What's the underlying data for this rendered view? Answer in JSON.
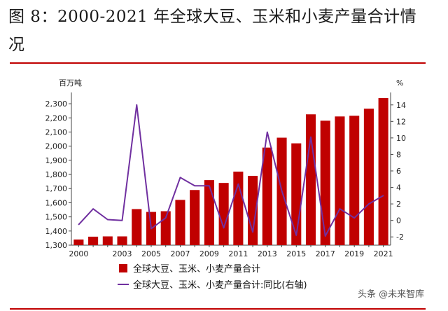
{
  "title": "图 8：2000-2021 年全球大豆、玉米和小麦产量合计情况",
  "watermark": "头条 @未来智库",
  "chart_data": {
    "type": "bar",
    "left_unit": "百万吨",
    "right_unit": "%",
    "categories": [
      "2000",
      "2001",
      "2002",
      "2003",
      "2004",
      "2005",
      "2006",
      "2007",
      "2008",
      "2009",
      "2010",
      "2011",
      "2012",
      "2013",
      "2014",
      "2015",
      "2016",
      "2017",
      "2018",
      "2019",
      "2020",
      "2021"
    ],
    "x_tick_labels": [
      "2000",
      "2003",
      "2005",
      "2007",
      "2009",
      "2011",
      "2013",
      "2015",
      "2017",
      "2019",
      "2021"
    ],
    "series": [
      {
        "name": "全球大豆、玉米、小麦产量合计",
        "type": "bar",
        "axis": "left",
        "color": "#c00000",
        "values": [
          1340,
          1360,
          1362,
          1362,
          1555,
          1535,
          1540,
          1620,
          1690,
          1760,
          1740,
          1820,
          1790,
          1990,
          2060,
          2020,
          2225,
          2180,
          2210,
          2215,
          2265,
          2340
        ]
      },
      {
        "name": "全球大豆、玉米、小麦产量合计:同比(右轴)",
        "type": "line",
        "axis": "right",
        "color": "#7030a0",
        "values": [
          -0.5,
          1.4,
          0.1,
          0.0,
          14.0,
          -1.0,
          0.3,
          5.2,
          4.2,
          4.2,
          -0.9,
          4.4,
          -1.4,
          10.7,
          3.6,
          -1.8,
          10.1,
          -1.9,
          1.4,
          0.3,
          2.0,
          3.0
        ]
      }
    ],
    "y_left": {
      "min": 1300,
      "max": 2350,
      "ticks": [
        1300,
        1400,
        1500,
        1600,
        1700,
        1800,
        1900,
        2000,
        2100,
        2200,
        2300
      ],
      "tick_labels": [
        "1,300",
        "1,400",
        "1,500",
        "1,600",
        "1,700",
        "1,800",
        "1,900",
        "2,000",
        "2,100",
        "2,200",
        "2,300"
      ]
    },
    "y_right": {
      "min": -3,
      "max": 15,
      "ticks": [
        -2,
        0,
        2,
        4,
        6,
        8,
        10,
        12,
        14
      ],
      "tick_labels": [
        "-2",
        "0",
        "2",
        "4",
        "6",
        "8",
        "10",
        "12",
        "14"
      ]
    },
    "grid": false,
    "legend_position": "bottom"
  }
}
